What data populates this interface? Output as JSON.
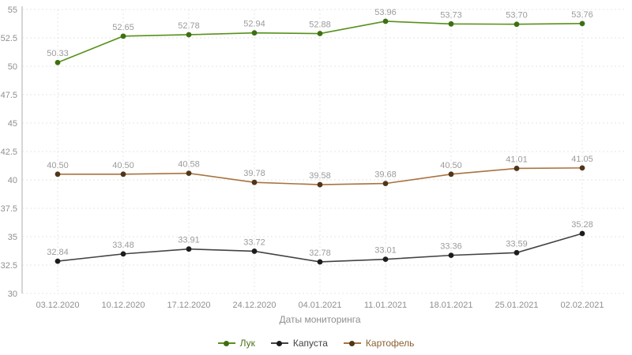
{
  "chart_data": {
    "type": "line",
    "title": "",
    "xlabel": "Даты мониторинга",
    "ylabel": "",
    "ylim": [
      30,
      55
    ],
    "ytick_step": 2.5,
    "grid": true,
    "legend_position": "bottom",
    "background": "#ffffff",
    "grid_color": "#e4e4e4",
    "axis_line_color": "#c8c8c8",
    "tick_label_color": "#8f8f8f",
    "point_label_color": "#9b9b9b",
    "categories": [
      "03.12.2020",
      "10.12.2020",
      "17.12.2020",
      "24.12.2020",
      "04.01.2021",
      "11.01.2021",
      "18.01.2021",
      "25.01.2021",
      "02.02.2021"
    ],
    "series": [
      {
        "name": "Лук",
        "color": "#57911c",
        "marker_color": "#3e6f12",
        "label_color": "#4c711b",
        "values": [
          50.33,
          52.65,
          52.78,
          52.94,
          52.88,
          53.96,
          53.73,
          53.7,
          53.76
        ]
      },
      {
        "name": "Капуста",
        "color": "#434343",
        "marker_color": "#1c1c1c",
        "label_color": "#444444",
        "values": [
          32.84,
          33.48,
          33.91,
          33.72,
          32.78,
          33.01,
          33.36,
          33.59,
          35.28
        ]
      },
      {
        "name": "Картофель",
        "color": "#a8733f",
        "marker_color": "#503619",
        "label_color": "#8a5f31",
        "values": [
          40.5,
          40.5,
          40.58,
          39.78,
          39.58,
          39.68,
          40.5,
          41.01,
          41.05
        ]
      }
    ]
  }
}
